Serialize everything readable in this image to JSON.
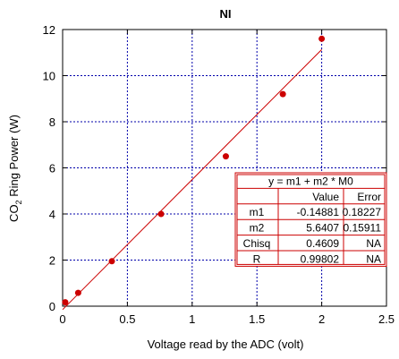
{
  "chart_data": {
    "type": "scatter",
    "title": "NI",
    "xlabel": "Voltage read by the ADC (volt)",
    "ylabel_main": "CO",
    "ylabel_sub": "2",
    "ylabel_rest": " Ring Power (W)",
    "xlim": [
      0,
      2.5
    ],
    "ylim": [
      0,
      12
    ],
    "xticks": [
      "0",
      "0.5",
      "1",
      "1.5",
      "2",
      "2.5"
    ],
    "yticks": [
      "0",
      "2",
      "4",
      "6",
      "8",
      "10",
      "12"
    ],
    "grid": true,
    "series": [
      {
        "values": [
          {
            "x": 0.02,
            "y": 0.17
          },
          {
            "x": 0.12,
            "y": 0.58
          },
          {
            "x": 0.38,
            "y": 1.95
          },
          {
            "x": 0.76,
            "y": 4.0
          },
          {
            "x": 1.26,
            "y": 6.5
          },
          {
            "x": 1.7,
            "y": 9.2
          },
          {
            "x": 2.0,
            "y": 11.6
          }
        ]
      }
    ],
    "fit": {
      "equation": "y = m1 + m2 * M0",
      "m1": -0.14881,
      "m2": 5.6407,
      "x_range": [
        0.0,
        2.0
      ]
    },
    "fit_table": {
      "headers": [
        "",
        "Value",
        "Error"
      ],
      "rows": [
        [
          "m1",
          "-0.14881",
          "0.18227"
        ],
        [
          "m2",
          "5.6407",
          "0.15911"
        ],
        [
          "Chisq",
          "0.4609",
          "NA"
        ],
        [
          "R",
          "0.99802",
          "NA"
        ]
      ]
    },
    "colors": {
      "points": "#cc0000",
      "fit_line": "#cc0000",
      "grid": "#0000aa",
      "table_border": "#cc0000"
    }
  }
}
